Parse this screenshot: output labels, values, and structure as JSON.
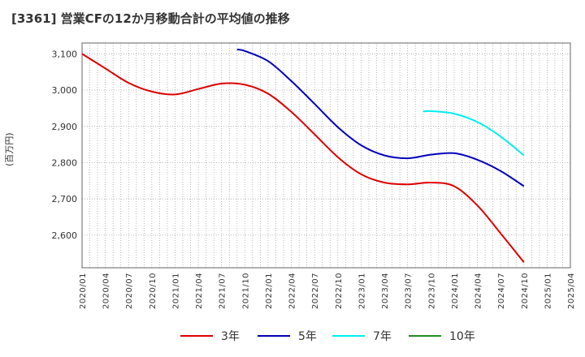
{
  "title": "[3361]  営業CFの12か月移動合計の平均値の推移",
  "chart_data": {
    "type": "line",
    "ylabel": "(百万円)",
    "ylim": [
      2510,
      3130
    ],
    "yticks": [
      2600,
      2700,
      2800,
      2900,
      3000,
      3100
    ],
    "ytick_labels": [
      "2,600",
      "2,700",
      "2,800",
      "2,900",
      "3,000",
      "3,100"
    ],
    "xticks": [
      "2020/01",
      "2020/04",
      "2020/07",
      "2020/10",
      "2021/01",
      "2021/04",
      "2021/07",
      "2021/10",
      "2022/01",
      "2022/04",
      "2022/07",
      "2022/10",
      "2023/01",
      "2023/04",
      "2023/07",
      "2023/10",
      "2024/01",
      "2024/04",
      "2024/07",
      "2024/10",
      "2025/01",
      "2025/04"
    ],
    "grid": true,
    "legend_position": "bottom",
    "series": [
      {
        "name": "3年",
        "color": "#dd0000",
        "points": [
          [
            "2020/01",
            3100
          ],
          [
            "2020/04",
            3060
          ],
          [
            "2020/07",
            3020
          ],
          [
            "2020/10",
            2996
          ],
          [
            "2021/01",
            2988
          ],
          [
            "2021/04",
            3003
          ],
          [
            "2021/07",
            3018
          ],
          [
            "2021/10",
            3015
          ],
          [
            "2022/01",
            2990
          ],
          [
            "2022/04",
            2940
          ],
          [
            "2022/07",
            2878
          ],
          [
            "2022/10",
            2815
          ],
          [
            "2023/01",
            2768
          ],
          [
            "2023/04",
            2745
          ],
          [
            "2023/07",
            2740
          ],
          [
            "2023/10",
            2745
          ],
          [
            "2024/01",
            2735
          ],
          [
            "2024/04",
            2682
          ],
          [
            "2024/07",
            2605
          ],
          [
            "2024/10",
            2525
          ]
        ]
      },
      {
        "name": "5年",
        "color": "#0000bb",
        "points": [
          [
            "2021/09",
            3112
          ],
          [
            "2021/10",
            3108
          ],
          [
            "2022/01",
            3080
          ],
          [
            "2022/04",
            3025
          ],
          [
            "2022/07",
            2962
          ],
          [
            "2022/10",
            2898
          ],
          [
            "2023/01",
            2848
          ],
          [
            "2023/04",
            2820
          ],
          [
            "2023/07",
            2812
          ],
          [
            "2023/10",
            2822
          ],
          [
            "2024/01",
            2826
          ],
          [
            "2024/04",
            2808
          ],
          [
            "2024/07",
            2777
          ],
          [
            "2024/10",
            2735
          ]
        ]
      },
      {
        "name": "7年",
        "color": "#00eeee",
        "points": [
          [
            "2023/09",
            2941
          ],
          [
            "2023/10",
            2942
          ],
          [
            "2024/01",
            2935
          ],
          [
            "2024/04",
            2912
          ],
          [
            "2024/07",
            2872
          ],
          [
            "2024/10",
            2820
          ]
        ]
      },
      {
        "name": "10年",
        "color": "#228b22",
        "points": []
      }
    ]
  }
}
